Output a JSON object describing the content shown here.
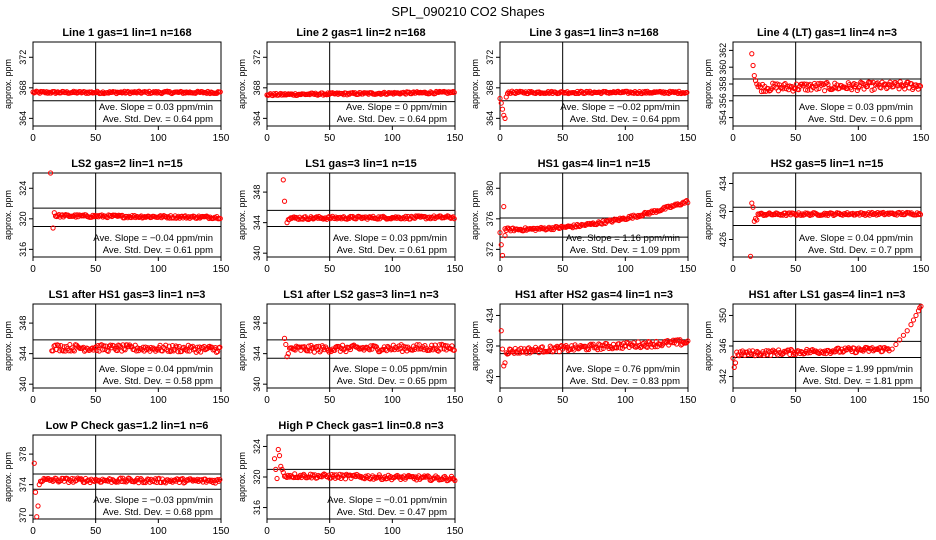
{
  "figure_title": "SPL_090210  CO2 Shapes",
  "ylabel": "approx. ppm",
  "slope_label": "Ave. Slope =",
  "std_label": "Ave. Std. Dev. =",
  "colors": {
    "points": "#ff0000",
    "axes": "#000000"
  },
  "chart_data": [
    {
      "type": "scatter",
      "title": "Line 1 gas=1 lin=1 n=168",
      "ylabel": "approx. ppm",
      "xlim": [
        0,
        150
      ],
      "ylim": [
        363,
        374
      ],
      "xticks": [
        0,
        50,
        100,
        150
      ],
      "yticks": [
        364,
        368,
        372
      ],
      "hlines": [
        368.6,
        366.3
      ],
      "vline": 50,
      "slope": "0.03",
      "slope_unit": "ppm/min",
      "std": "0.64",
      "std_unit": "ppm",
      "points_desc": {
        "x": [
          0,
          150
        ],
        "base": [
          367.4,
          367.4
        ],
        "noise": 0.15
      }
    },
    {
      "type": "scatter",
      "title": "Line 2 gas=1 lin=2 n=168",
      "ylabel": "approx. ppm",
      "xlim": [
        0,
        150
      ],
      "ylim": [
        363,
        374
      ],
      "xticks": [
        0,
        50,
        100,
        150
      ],
      "yticks": [
        364,
        368,
        372
      ],
      "hlines": [
        368.5,
        366.2
      ],
      "vline": 50,
      "slope": "0",
      "slope_unit": "ppm/min",
      "std": "0.64",
      "std_unit": "ppm",
      "points_desc": {
        "x": [
          0,
          150
        ],
        "base": [
          367.1,
          367.4
        ],
        "noise": 0.15
      }
    },
    {
      "type": "scatter",
      "title": "Line 3 gas=1 lin=3 n=168",
      "ylabel": "approx. ppm",
      "xlim": [
        0,
        150
      ],
      "ylim": [
        363,
        374
      ],
      "xticks": [
        0,
        50,
        100,
        150
      ],
      "yticks": [
        364,
        368,
        372
      ],
      "hlines": [
        368.6,
        366.3
      ],
      "vline": 50,
      "slope": "−0.02",
      "slope_unit": "ppm/min",
      "std": "0.64",
      "std_unit": "ppm",
      "points_desc": {
        "x": [
          6,
          150
        ],
        "base": [
          367.4,
          367.4
        ],
        "noise": 0.15
      },
      "extra_points": [
        [
          0,
          366.6
        ],
        [
          1,
          366.0
        ],
        [
          2,
          365.2
        ],
        [
          3,
          364.4
        ],
        [
          4,
          364.0
        ],
        [
          5,
          366.8
        ]
      ]
    },
    {
      "type": "scatter",
      "title": "Line 4 (LT) gas=1 lin=4 n=3",
      "ylabel": "approx. ppm",
      "xlim": [
        0,
        150
      ],
      "ylim": [
        353,
        363
      ],
      "xticks": [
        0,
        50,
        100,
        150
      ],
      "yticks": [
        354,
        356,
        358,
        360,
        362
      ],
      "hlines": [
        358.6,
        356.6
      ],
      "vline": 50,
      "slope": "0.03",
      "slope_unit": "ppm/min",
      "std": "0.6",
      "std_unit": "ppm",
      "points_desc": {
        "x": [
          20,
          150
        ],
        "base": [
          357.6,
          357.8
        ],
        "noise": 0.5
      },
      "extra_points": [
        [
          15,
          361.6
        ],
        [
          16,
          360.2
        ],
        [
          17,
          359.0
        ],
        [
          18,
          358.4
        ],
        [
          19,
          358.0
        ]
      ]
    },
    {
      "type": "scatter",
      "title": "LS2 gas=2 lin=1 n=15",
      "ylabel": "approx. ppm",
      "xlim": [
        0,
        150
      ],
      "ylim": [
        315,
        326
      ],
      "xticks": [
        0,
        50,
        100,
        150
      ],
      "yticks": [
        316,
        320,
        324
      ],
      "hlines": [
        321.4,
        319.0
      ],
      "vline": 50,
      "slope": "−0.04",
      "slope_unit": "ppm/min",
      "std": "0.61",
      "std_unit": "ppm",
      "points_desc": {
        "x": [
          18,
          150
        ],
        "base": [
          320.4,
          320.2
        ],
        "noise": 0.18
      },
      "extra_points": [
        [
          14,
          326.0
        ],
        [
          16,
          318.8
        ],
        [
          17,
          320.8
        ]
      ]
    },
    {
      "type": "scatter",
      "title": "LS1 gas=3 lin=1 n=15",
      "ylabel": "approx. ppm",
      "xlim": [
        0,
        150
      ],
      "ylim": [
        339.5,
        350.5
      ],
      "xticks": [
        0,
        50,
        100,
        150
      ],
      "yticks": [
        340,
        344,
        348
      ],
      "hlines": [
        345.6,
        343.5
      ],
      "vline": 50,
      "slope": "0.03",
      "slope_unit": "ppm/min",
      "std": "0.61",
      "std_unit": "ppm",
      "points_desc": {
        "x": [
          18,
          150
        ],
        "base": [
          344.6,
          344.7
        ],
        "noise": 0.2
      },
      "extra_points": [
        [
          13,
          349.6
        ],
        [
          14,
          346.8
        ],
        [
          16,
          344.0
        ],
        [
          17,
          344.4
        ]
      ]
    },
    {
      "type": "scatter",
      "title": "HS1 gas=4 lin=1 n=15",
      "ylabel": "approx. ppm",
      "xlim": [
        0,
        150
      ],
      "ylim": [
        371,
        382
      ],
      "xticks": [
        0,
        50,
        100,
        150
      ],
      "yticks": [
        372,
        376,
        380
      ],
      "hlines": [
        376.1,
        373.6
      ],
      "vline": 50,
      "slope": "1.16",
      "slope_unit": "ppm/min",
      "std": "1.09",
      "std_unit": "ppm",
      "points_desc": {
        "x": [
          4,
          150
        ],
        "base": [
          374.6,
          378.3
        ],
        "noise": 0.2,
        "curve": 2.2
      },
      "extra_points": [
        [
          0,
          374.2
        ],
        [
          1,
          372.6
        ],
        [
          2,
          371.2
        ],
        [
          3,
          377.6
        ],
        [
          4,
          373.8
        ]
      ]
    },
    {
      "type": "scatter",
      "title": "HS2 gas=5 lin=1 n=15",
      "ylabel": "approx. ppm",
      "xlim": [
        0,
        150
      ],
      "ylim": [
        423.5,
        435.5
      ],
      "xticks": [
        0,
        50,
        100,
        150
      ],
      "yticks": [
        426,
        430,
        434
      ],
      "hlines": [
        430.6,
        428.0
      ],
      "vline": 50,
      "slope": "0.04",
      "slope_unit": "ppm/min",
      "std": "0.7",
      "std_unit": "ppm",
      "points_desc": {
        "x": [
          20,
          150
        ],
        "base": [
          429.6,
          429.7
        ],
        "noise": 0.2
      },
      "extra_points": [
        [
          14,
          423.6
        ],
        [
          15,
          431.2
        ],
        [
          16,
          430.6
        ],
        [
          17,
          428.6
        ],
        [
          18,
          429.0
        ],
        [
          19,
          428.8
        ]
      ]
    },
    {
      "type": "scatter",
      "title": "LS1 after HS1 gas=3 lin=1 n=3",
      "ylabel": "approx. ppm",
      "xlim": [
        0,
        150
      ],
      "ylim": [
        339.5,
        350.5
      ],
      "xticks": [
        0,
        50,
        100,
        150
      ],
      "yticks": [
        340,
        344,
        348
      ],
      "hlines": [
        345.8,
        343.4
      ],
      "vline": 50,
      "slope": "0.04",
      "slope_unit": "ppm/min",
      "std": "0.58",
      "std_unit": "ppm",
      "points_desc": {
        "x": [
          15,
          150
        ],
        "base": [
          344.8,
          344.6
        ],
        "noise": 0.45
      }
    },
    {
      "type": "scatter",
      "title": "LS1 after LS2 gas=3 lin=1 n=3",
      "ylabel": "approx. ppm",
      "xlim": [
        0,
        150
      ],
      "ylim": [
        339.5,
        350.5
      ],
      "xticks": [
        0,
        50,
        100,
        150
      ],
      "yticks": [
        340,
        344,
        348
      ],
      "hlines": [
        345.8,
        343.4
      ],
      "vline": 50,
      "slope": "0.05",
      "slope_unit": "ppm/min",
      "std": "0.65",
      "std_unit": "ppm",
      "points_desc": {
        "x": [
          18,
          150
        ],
        "base": [
          344.6,
          344.8
        ],
        "noise": 0.45
      },
      "extra_points": [
        [
          14,
          346.0
        ],
        [
          15,
          345.2
        ],
        [
          16,
          343.6
        ],
        [
          17,
          344.0
        ]
      ]
    },
    {
      "type": "scatter",
      "title": "HS1 after HS2 gas=4 lin=1 n=3",
      "ylabel": "approx. ppm",
      "xlim": [
        0,
        150
      ],
      "ylim": [
        424.5,
        435.5
      ],
      "xticks": [
        0,
        50,
        100,
        150
      ],
      "yticks": [
        426,
        430,
        434
      ],
      "hlines": [
        430.8,
        429.0
      ],
      "vline": 50,
      "slope": "0.76",
      "slope_unit": "ppm/min",
      "std": "0.83",
      "std_unit": "ppm",
      "points_desc": {
        "x": [
          5,
          150
        ],
        "base": [
          429.3,
          430.5
        ],
        "noise": 0.4
      },
      "extra_points": [
        [
          1,
          432.0
        ],
        [
          2,
          429.6
        ],
        [
          3,
          427.4
        ],
        [
          4,
          427.8
        ]
      ]
    },
    {
      "type": "scatter",
      "title": "HS1 after LS1 gas=4 lin=1 n=3",
      "ylabel": "approx. ppm",
      "xlim": [
        0,
        150
      ],
      "ylim": [
        340.5,
        351.5
      ],
      "xticks": [
        0,
        50,
        100,
        150
      ],
      "yticks": [
        342,
        346,
        350
      ],
      "hlines": [
        346.6,
        344.5
      ],
      "vline": 50,
      "slope": "1.99",
      "slope_unit": "ppm/min",
      "std": "1.81",
      "std_unit": "ppm",
      "points_desc": {
        "x": [
          4,
          125
        ],
        "base": [
          345.0,
          345.6
        ],
        "noise": 0.35
      },
      "extra_points": [
        [
          0,
          344.4
        ],
        [
          1,
          343.2
        ],
        [
          2,
          343.8
        ],
        [
          3,
          345.2
        ],
        [
          127,
          345.6
        ],
        [
          130,
          346.2
        ],
        [
          133,
          346.8
        ],
        [
          136,
          347.4
        ],
        [
          139,
          348.0
        ],
        [
          142,
          348.8
        ],
        [
          144,
          349.4
        ],
        [
          146,
          350.0
        ],
        [
          148,
          350.6
        ],
        [
          149,
          351.0
        ],
        [
          150,
          351.2
        ]
      ]
    },
    {
      "type": "scatter",
      "title": "Low P Check gas=1.2 lin=1 n=6",
      "ylabel": "approx. ppm",
      "xlim": [
        0,
        150
      ],
      "ylim": [
        369.5,
        380.5
      ],
      "xticks": [
        0,
        50,
        100,
        150
      ],
      "yticks": [
        370,
        374,
        378
      ],
      "hlines": [
        375.4,
        373.4
      ],
      "vline": 50,
      "slope": "−0.03",
      "slope_unit": "ppm/min",
      "std": "0.68",
      "std_unit": "ppm",
      "points_desc": {
        "x": [
          6,
          150
        ],
        "base": [
          374.6,
          374.5
        ],
        "noise": 0.3
      },
      "extra_points": [
        [
          1,
          376.8
        ],
        [
          2,
          373.0
        ],
        [
          3,
          369.8
        ],
        [
          4,
          371.2
        ],
        [
          5,
          374.0
        ]
      ]
    },
    {
      "type": "scatter",
      "title": "High P Check gas=1 lin=0.8 n=3",
      "ylabel": "approx. ppm",
      "xlim": [
        0,
        150
      ],
      "ylim": [
        314.5,
        325.5
      ],
      "xticks": [
        0,
        50,
        100,
        150
      ],
      "yticks": [
        316,
        320,
        324
      ],
      "hlines": [
        321.0,
        318.6
      ],
      "vline": 50,
      "slope": "−0.01",
      "slope_unit": "ppm/min",
      "std": "0.47",
      "std_unit": "ppm",
      "points_desc": {
        "x": [
          14,
          150
        ],
        "base": [
          320.2,
          319.8
        ],
        "noise": 0.3
      },
      "extra_points": [
        [
          6,
          322.4
        ],
        [
          7,
          321.0
        ],
        [
          8,
          319.8
        ],
        [
          9,
          323.6
        ],
        [
          10,
          322.8
        ],
        [
          11,
          321.4
        ],
        [
          12,
          321.0
        ],
        [
          13,
          320.6
        ]
      ]
    }
  ]
}
